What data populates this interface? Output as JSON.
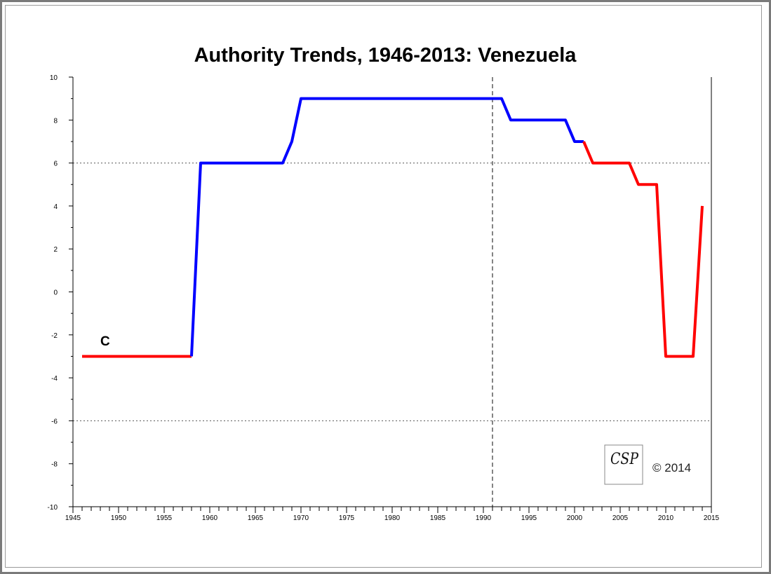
{
  "chart_data": {
    "type": "line",
    "title": "Authority Trends, 1946-2013: Venezuela",
    "xlabel": "",
    "ylabel": "",
    "xlim": [
      1945,
      2015
    ],
    "ylim": [
      -10,
      10
    ],
    "x_ticks": [
      "1945",
      "1950",
      "1955",
      "1960",
      "1965",
      "1970",
      "1975",
      "1980",
      "1985",
      "1990",
      "1995",
      "2000",
      "2005",
      "2010",
      "2015"
    ],
    "y_ticks": [
      "10",
      "8",
      "6",
      "4",
      "2",
      "0",
      "-2",
      "-4",
      "-6",
      "-8",
      "-10"
    ],
    "reference_lines": [
      6,
      -6
    ],
    "vertical_reference_x": 1991,
    "series_label": "C",
    "series_label_position": [
      1948,
      -2.5
    ],
    "segments": [
      {
        "color": "#ff0000",
        "x": [
          1946,
          1958
        ],
        "y": [
          -3,
          -3
        ]
      },
      {
        "color": "#0000ff",
        "x": [
          1958,
          1959,
          1968,
          1969,
          1970,
          1992,
          1993,
          1999,
          2000,
          2001
        ],
        "y": [
          -3,
          6,
          6,
          7,
          9,
          9,
          8,
          8,
          7,
          7
        ]
      },
      {
        "color": "#ff0000",
        "x": [
          2001,
          2002,
          2006,
          2007,
          2009,
          2010,
          2013,
          2014
        ],
        "y": [
          7,
          6,
          6,
          5,
          5,
          -3,
          -3,
          4
        ]
      }
    ],
    "logo": {
      "text": "CSP"
    },
    "copyright": "© 2014"
  }
}
